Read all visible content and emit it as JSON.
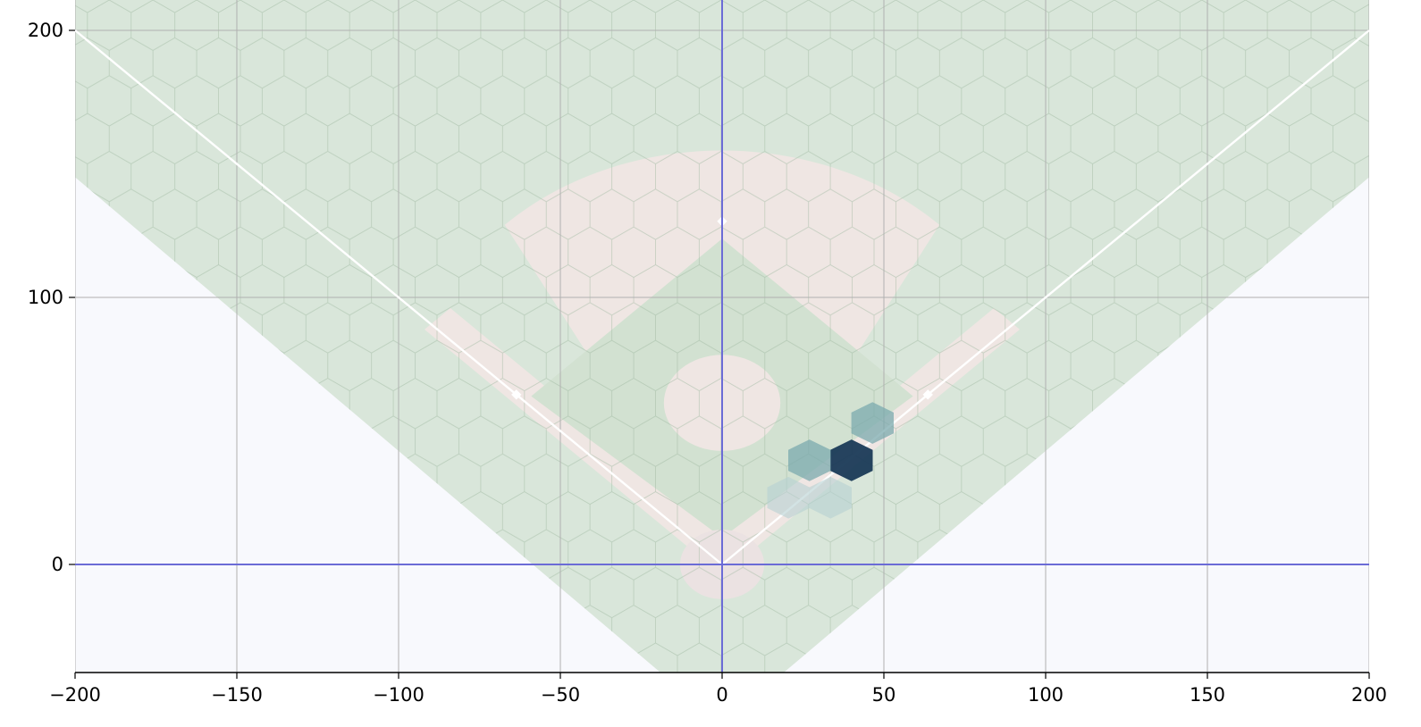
{
  "chart_data": {
    "type": "heatmap",
    "subtype": "hexbin",
    "title": "",
    "xlabel": "",
    "ylabel": "",
    "xlim": [
      -200,
      200
    ],
    "ylim": [
      -40,
      210
    ],
    "xticks": [
      -200,
      -150,
      -100,
      -50,
      0,
      50,
      100,
      150,
      200
    ],
    "yticks": [
      0,
      100,
      200
    ],
    "xtick_labels": [
      "−200",
      "−150",
      "−100",
      "−50",
      "0",
      "50",
      "100",
      "150",
      "200"
    ],
    "ytick_labels": [
      "0",
      "100",
      "200"
    ],
    "grid": true,
    "reference_lines": {
      "x": 0,
      "y": 0,
      "color": "#6b6bd6"
    },
    "background": "baseball-field",
    "colormap": [
      "#b6d0d2",
      "#7ba9ad",
      "#1a3a57"
    ],
    "hex_size": 7.8,
    "bins": [
      {
        "x": 40,
        "y": 39,
        "count": 3
      },
      {
        "x": 27,
        "y": 39,
        "count": 2
      },
      {
        "x": 46.5,
        "y": 53,
        "count": 2
      },
      {
        "x": 33.5,
        "y": 25,
        "count": 1
      },
      {
        "x": 20.5,
        "y": 25,
        "count": 1
      }
    ],
    "colors": {
      "outfield": "#d9e6da",
      "infield_dirt": "#efe6e3",
      "infield_grass": "#d2e1d1",
      "foul_area": "#f8f9fd",
      "grid": "#b0b0b0",
      "chalk": "#ffffff"
    }
  }
}
